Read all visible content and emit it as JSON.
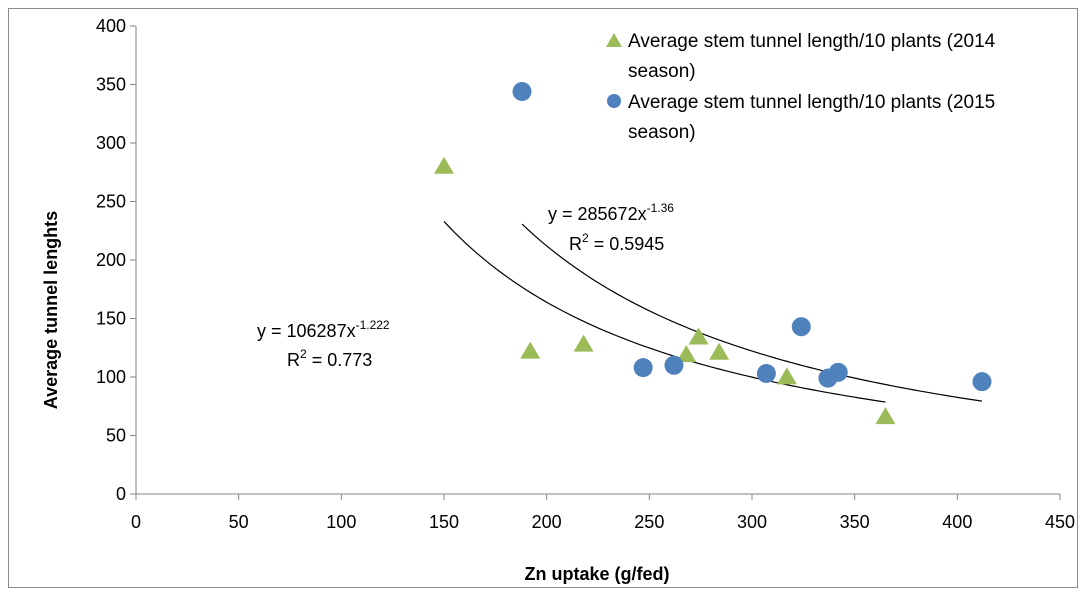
{
  "chart_data": {
    "type": "scatter",
    "title": "",
    "xlabel": "Zn uptake (g/fed)",
    "ylabel": "Average tunnel lenghts",
    "xlim": [
      0,
      450
    ],
    "ylim": [
      0,
      400
    ],
    "x_ticks": [
      "0",
      "50",
      "100",
      "150",
      "200",
      "250",
      "300",
      "350",
      "400",
      "450"
    ],
    "y_ticks": [
      "0",
      "50",
      "100",
      "150",
      "200",
      "250",
      "300",
      "350",
      "400"
    ],
    "grid": false,
    "legend_position": "top-right",
    "series": [
      {
        "name": "Average stem tunnel length/10 plants (2014 season)",
        "marker": "triangle",
        "color": "#9bbb59",
        "x": [
          150,
          192,
          218,
          268,
          274,
          284,
          317,
          365
        ],
        "y": [
          281,
          123,
          129,
          120,
          135,
          122,
          101,
          67
        ],
        "trendline": {
          "type": "power",
          "a": 106287,
          "b": -1.222,
          "x_range": [
            150,
            365
          ],
          "equation_base": "y = 106287x",
          "equation_exp": "-1.222",
          "r2_base": "R",
          "r2_sup": "2",
          "r2_value": " = 0.773"
        }
      },
      {
        "name": "Average stem tunnel length/10 plants (2015 season)",
        "marker": "circle",
        "color": "#4f81bd",
        "x": [
          188,
          247,
          262,
          307,
          324,
          337,
          342,
          412
        ],
        "y": [
          344,
          108,
          110,
          103,
          143,
          99,
          104,
          96
        ],
        "trendline": {
          "type": "power",
          "a": 285672,
          "b": -1.36,
          "x_range": [
            188,
            412
          ],
          "equation_base": "y = 285672x",
          "equation_exp": "-1.36",
          "r2_base": "R",
          "r2_sup": "2",
          "r2_value": " = 0.5945"
        }
      }
    ]
  },
  "legend": {
    "items": [
      {
        "line1": "Average stem tunnel length/10 plants (2014",
        "line2": "season)"
      },
      {
        "line1": "Average stem tunnel length/10 plants (2015",
        "line2": "season)"
      }
    ]
  }
}
